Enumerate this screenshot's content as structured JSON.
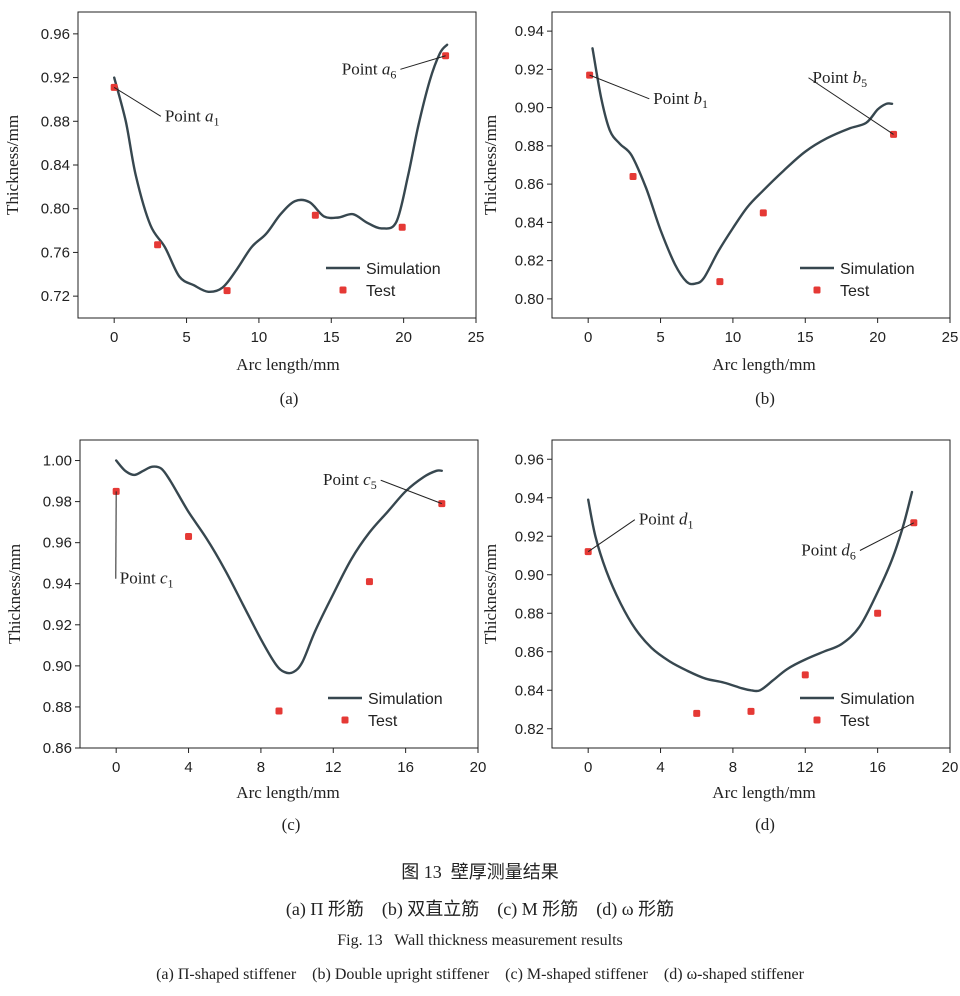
{
  "chart_data": [
    {
      "type": "line",
      "panel": "(a)",
      "xlabel": "Arc length/mm",
      "ylabel": "Thickness/mm",
      "xlim": [
        -2.5,
        25
      ],
      "ylim": [
        0.7,
        0.98
      ],
      "xticks": [
        0,
        5,
        10,
        15,
        20,
        25
      ],
      "yticks": [
        0.72,
        0.76,
        0.8,
        0.84,
        0.88,
        0.92,
        0.96
      ],
      "ydecimals": 2,
      "series": [
        {
          "name": "Simulation",
          "kind": "line",
          "x": [
            0,
            0.8,
            1.5,
            2.5,
            3.5,
            4.5,
            5.5,
            6.5,
            7.5,
            8.5,
            9.5,
            10.5,
            11.5,
            12.5,
            13.5,
            14.5,
            15.5,
            16.5,
            17.5,
            18.5,
            19.5,
            20.3,
            21,
            21.8,
            22.5,
            23
          ],
          "y": [
            0.92,
            0.88,
            0.83,
            0.785,
            0.765,
            0.738,
            0.73,
            0.724,
            0.728,
            0.745,
            0.765,
            0.777,
            0.795,
            0.807,
            0.806,
            0.793,
            0.792,
            0.795,
            0.787,
            0.782,
            0.788,
            0.83,
            0.875,
            0.917,
            0.942,
            0.95
          ]
        },
        {
          "name": "Test",
          "kind": "scatter",
          "x": [
            0,
            3,
            7.8,
            13.9,
            19.9,
            22.9
          ],
          "y": [
            0.911,
            0.767,
            0.725,
            0.794,
            0.783,
            0.94
          ]
        }
      ],
      "annotations": [
        {
          "label": "Point a",
          "sub": "1",
          "at": [
            0,
            0.911
          ],
          "text_at": [
            3.5,
            0.88
          ],
          "anchor": "start"
        },
        {
          "label": "Point a",
          "sub": "6",
          "at": [
            22.9,
            0.94
          ],
          "text_at": [
            19.5,
            0.923
          ],
          "anchor": "end"
        }
      ],
      "legend": {
        "position": "bottom-right",
        "entries": [
          "Simulation",
          "Test"
        ]
      }
    },
    {
      "type": "line",
      "panel": "(b)",
      "xlabel": "Arc length/mm",
      "ylabel": "Thickness/mm",
      "xlim": [
        -2.5,
        25
      ],
      "ylim": [
        0.79,
        0.95
      ],
      "xticks": [
        0,
        5,
        10,
        15,
        20,
        25
      ],
      "yticks": [
        0.8,
        0.82,
        0.84,
        0.86,
        0.88,
        0.9,
        0.92,
        0.94
      ],
      "ydecimals": 2,
      "series": [
        {
          "name": "Simulation",
          "kind": "line",
          "x": [
            0.3,
            0.9,
            1.5,
            2.2,
            3.0,
            4.0,
            5.0,
            6.0,
            6.8,
            7.4,
            8.0,
            9.0,
            10.0,
            11.0,
            12.0,
            13.5,
            15.0,
            16.5,
            18.0,
            19.2,
            20.0,
            20.6,
            21.0
          ],
          "y": [
            0.931,
            0.905,
            0.888,
            0.881,
            0.875,
            0.858,
            0.836,
            0.818,
            0.809,
            0.808,
            0.811,
            0.825,
            0.837,
            0.848,
            0.856,
            0.867,
            0.877,
            0.884,
            0.889,
            0.892,
            0.899,
            0.902,
            0.902
          ]
        },
        {
          "name": "Test",
          "kind": "scatter",
          "x": [
            0.1,
            3.1,
            9.1,
            12.1,
            21.1
          ],
          "y": [
            0.917,
            0.864,
            0.809,
            0.845,
            0.886
          ]
        }
      ],
      "annotations": [
        {
          "label": "Point b",
          "sub": "1",
          "at": [
            0.1,
            0.917
          ],
          "text_at": [
            4.5,
            0.902
          ],
          "anchor": "start"
        },
        {
          "label": "Point b",
          "sub": "5",
          "at": [
            21.1,
            0.886
          ],
          "text_at": [
            15.5,
            0.913
          ],
          "anchor": "start"
        }
      ],
      "legend": {
        "position": "bottom-right",
        "entries": [
          "Simulation",
          "Test"
        ]
      }
    },
    {
      "type": "line",
      "panel": "(c)",
      "xlabel": "Arc length/mm",
      "ylabel": "Thickness/mm",
      "xlim": [
        -2,
        20
      ],
      "ylim": [
        0.86,
        1.01
      ],
      "xticks": [
        0,
        4,
        8,
        12,
        16,
        20
      ],
      "yticks": [
        0.86,
        0.88,
        0.9,
        0.92,
        0.94,
        0.96,
        0.98,
        1.0
      ],
      "ydecimals": 2,
      "series": [
        {
          "name": "Simulation",
          "kind": "line",
          "x": [
            0,
            0.5,
            1.0,
            1.5,
            2.0,
            2.5,
            3.0,
            4.0,
            5.0,
            6.0,
            7.0,
            8.0,
            8.8,
            9.3,
            9.8,
            10.3,
            11.0,
            12.0,
            13.0,
            14.0,
            15.0,
            16.0,
            17.0,
            17.7,
            18.0
          ],
          "y": [
            1.0,
            0.995,
            0.993,
            0.995,
            0.997,
            0.996,
            0.99,
            0.975,
            0.962,
            0.947,
            0.93,
            0.913,
            0.901,
            0.897,
            0.897,
            0.902,
            0.917,
            0.935,
            0.952,
            0.965,
            0.975,
            0.985,
            0.992,
            0.995,
            0.995
          ]
        },
        {
          "name": "Test",
          "kind": "scatter",
          "x": [
            0,
            4,
            9,
            14,
            18
          ],
          "y": [
            0.985,
            0.963,
            0.878,
            0.941,
            0.979
          ]
        }
      ],
      "annotations": [
        {
          "label": "Point c",
          "sub": "1",
          "at": [
            0,
            0.985
          ],
          "text_at": [
            0.2,
            0.94
          ],
          "anchor": "start"
        },
        {
          "label": "Point c",
          "sub": "5",
          "at": [
            18,
            0.979
          ],
          "text_at": [
            14.4,
            0.988
          ],
          "anchor": "end"
        }
      ],
      "legend": {
        "position": "bottom-right",
        "entries": [
          "Simulation",
          "Test"
        ]
      }
    },
    {
      "type": "line",
      "panel": "(d)",
      "xlabel": "Arc length/mm",
      "ylabel": "Thickness/mm",
      "xlim": [
        -2,
        20
      ],
      "ylim": [
        0.81,
        0.97
      ],
      "xticks": [
        0,
        4,
        8,
        12,
        16,
        20
      ],
      "yticks": [
        0.82,
        0.84,
        0.86,
        0.88,
        0.9,
        0.92,
        0.94,
        0.96
      ],
      "ydecimals": 2,
      "series": [
        {
          "name": "Simulation",
          "kind": "line",
          "x": [
            0,
            0.4,
            1.0,
            1.8,
            2.6,
            3.5,
            4.5,
            5.5,
            6.5,
            7.5,
            8.5,
            9.0,
            9.5,
            10.2,
            11.0,
            12.0,
            13.0,
            14.0,
            15.0,
            16.0,
            16.8,
            17.4,
            17.9
          ],
          "y": [
            0.939,
            0.92,
            0.902,
            0.885,
            0.872,
            0.862,
            0.855,
            0.85,
            0.846,
            0.844,
            0.841,
            0.84,
            0.84,
            0.845,
            0.851,
            0.856,
            0.86,
            0.864,
            0.873,
            0.891,
            0.908,
            0.925,
            0.943
          ]
        },
        {
          "name": "Test",
          "kind": "scatter",
          "x": [
            0,
            6,
            9,
            12,
            16,
            18
          ],
          "y": [
            0.912,
            0.828,
            0.829,
            0.848,
            0.88,
            0.927
          ]
        }
      ],
      "annotations": [
        {
          "label": "Point d",
          "sub": "1",
          "at": [
            0,
            0.912
          ],
          "text_at": [
            2.8,
            0.926
          ],
          "anchor": "start"
        },
        {
          "label": "Point d",
          "sub": "6",
          "at": [
            18,
            0.927
          ],
          "text_at": [
            14.8,
            0.91
          ],
          "anchor": "end"
        }
      ],
      "legend": {
        "position": "bottom-right",
        "entries": [
          "Simulation",
          "Test"
        ]
      }
    }
  ],
  "caption": {
    "zh_title": "图 13  壁厚测量结果",
    "zh_sub": "(a) Π 形筋    (b) 双直立筋    (c) M 形筋    (d) ω 形筋",
    "en_title": "Fig. 13   Wall thickness measurement results",
    "en_sub": "(a) Π-shaped stiffener    (b) Double upright stiffener    (c) M-shaped stiffener    (d) ω-shaped stiffener"
  }
}
